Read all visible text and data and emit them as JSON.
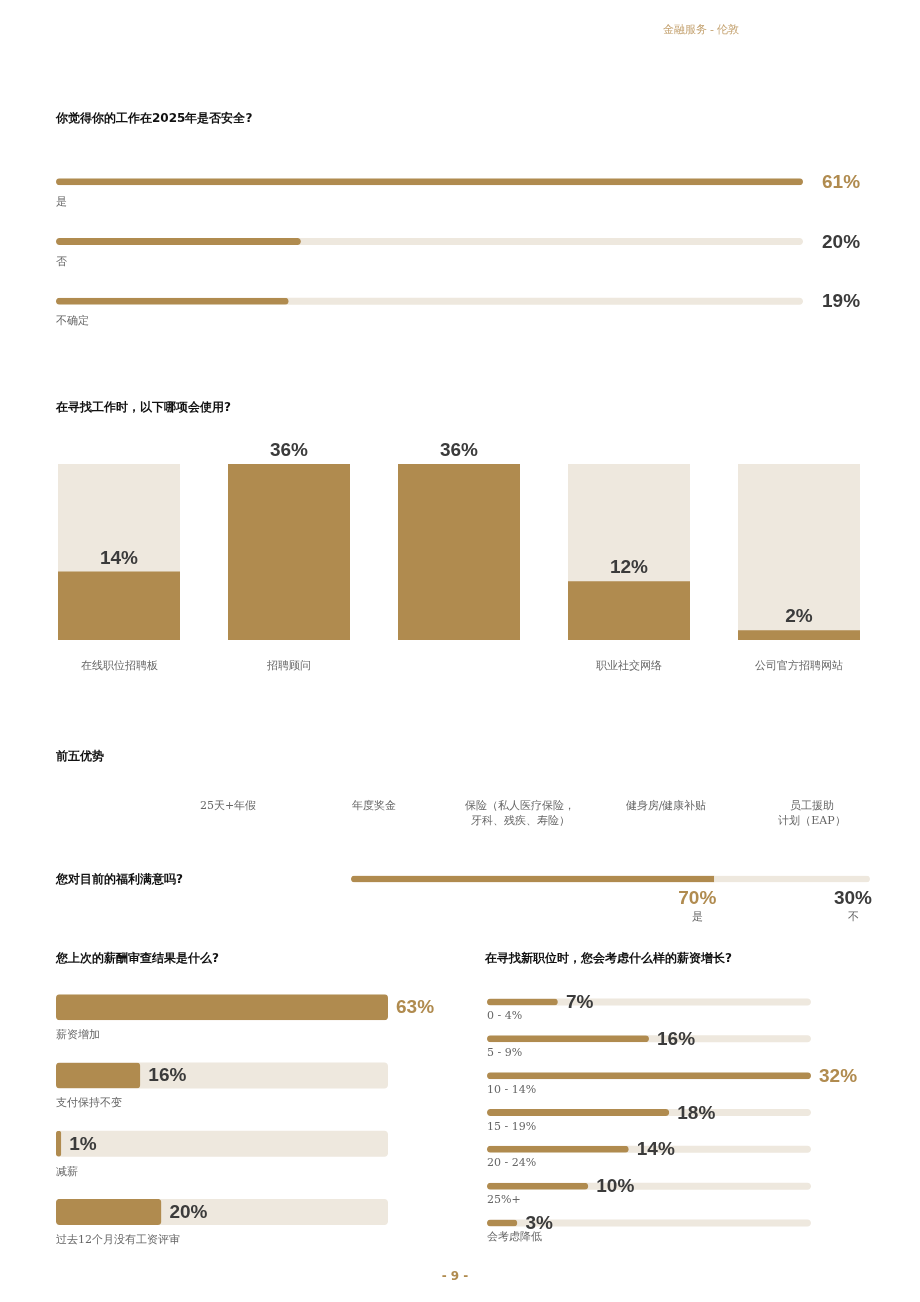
{
  "chart_data": [
    {
      "type": "other",
      "annotations": [
        "金融服务 - 伦敦"
      ]
    },
    {
      "type": "bar",
      "orientation": "horizontal",
      "title": "你觉得你的工作在2025年是否安全?",
      "categories": [
        "是",
        "否",
        "不确定"
      ],
      "values": [
        61,
        20,
        19
      ],
      "value_labels": [
        "61%",
        "20%",
        "19%"
      ],
      "color": "#b08b4f",
      "xlim": [
        0,
        61
      ]
    },
    {
      "type": "bar",
      "title": "在寻找工作时，以下哪项会使用?",
      "categories": [
        "在线职位招聘板",
        "招聘顾问",
        null,
        "职业社交网络",
        "公司官方招聘网站"
      ],
      "values": [
        14,
        36,
        36,
        12,
        2
      ],
      "value_labels": [
        "14%",
        "36%",
        "36%",
        "12%",
        "2%"
      ],
      "color": "#b08b4f",
      "ylim": [
        0,
        36
      ]
    },
    {
      "type": "other",
      "title": "前五优势",
      "categories": [
        "25天+年假",
        "年度奖金",
        "保险（私人医疗保险，牙科、残疾、寿险）",
        "健身房/健康补贴",
        "员工援助计划（EAP）"
      ]
    },
    {
      "type": "bar",
      "orientation": "horizontal",
      "stacked": true,
      "categories": [
        "您对目前的福利满意吗?"
      ],
      "series": [
        {
          "name": "是",
          "color": "#b08b4f",
          "values": [
            70
          ],
          "value_labels": [
            "70%"
          ]
        },
        {
          "name": "不",
          "color": "#eee8de",
          "values": [
            30
          ],
          "value_labels": [
            "30%"
          ]
        }
      ],
      "xlim": [
        0,
        100
      ]
    },
    {
      "type": "bar",
      "orientation": "horizontal",
      "title": "您上次的薪酬审查结果是什么?",
      "categories": [
        "薪资增加",
        "支付保持不变",
        "减薪",
        "过去12个月没有工资评审"
      ],
      "values": [
        63,
        16,
        1,
        20
      ],
      "value_labels": [
        "63%",
        "16%",
        "1%",
        "20%"
      ],
      "color": "#b08b4f",
      "xlim": [
        0,
        63
      ]
    },
    {
      "type": "bar",
      "orientation": "horizontal",
      "title": "在寻找新职位时，您会考虑什么样的薪资增长?",
      "categories": [
        "0 - 4%",
        "5 - 9%",
        "10 - 14%",
        "15 - 19%",
        "20 - 24%",
        "25%+",
        "会考虑降低"
      ],
      "values": [
        7,
        16,
        32,
        18,
        14,
        10,
        3
      ],
      "value_labels": [
        "7%",
        "16%",
        "32%",
        "18%",
        "14%",
        "10%",
        "3%"
      ],
      "color": "#b08b4f",
      "xlim": [
        0,
        32
      ]
    },
    {
      "type": "other",
      "annotations": [
        "- 9 -"
      ]
    }
  ]
}
